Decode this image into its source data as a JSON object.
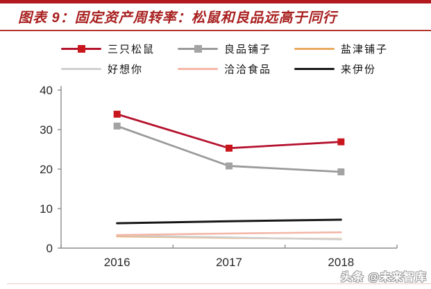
{
  "header": {
    "title": "图表 9：固定资产周转率：松鼠和良品远高于同行"
  },
  "watermark": {
    "text": "头条 @未来智库"
  },
  "chart_data": {
    "type": "line",
    "title": "固定资产周转率：松鼠和良品远高于同行",
    "categories": [
      "2016",
      "2017",
      "2018"
    ],
    "series": [
      {
        "name": "三只松鼠",
        "values": [
          33.9,
          25.3,
          26.9
        ],
        "color": "#b5122e",
        "marker": "square",
        "marker_color": "#c9161d"
      },
      {
        "name": "良品铺子",
        "values": [
          30.9,
          20.8,
          19.3
        ],
        "color": "#9a9a9a",
        "marker": "square",
        "marker_color": "#a3a3a3"
      },
      {
        "name": "盐津铺子",
        "values": [
          3.0,
          2.6,
          2.3
        ],
        "color": "#e9a95f",
        "marker": "none"
      },
      {
        "name": "好想你",
        "values": [
          3.2,
          2.7,
          2.2
        ],
        "color": "#cfcfcf",
        "marker": "none"
      },
      {
        "name": "洽洽食品",
        "values": [
          3.3,
          3.7,
          4.0
        ],
        "color": "#f3b6a6",
        "marker": "none"
      },
      {
        "name": "来伊份",
        "values": [
          6.3,
          6.8,
          7.2
        ],
        "color": "#161616",
        "marker": "none"
      }
    ],
    "xlabel": "",
    "ylabel": "",
    "ylim": [
      0,
      40
    ],
    "yticks": [
      0,
      10,
      20,
      30,
      40
    ],
    "grid": false,
    "legend_position": "top",
    "axis_color": "#8c8c8c",
    "tick_label_color": "#262626"
  }
}
